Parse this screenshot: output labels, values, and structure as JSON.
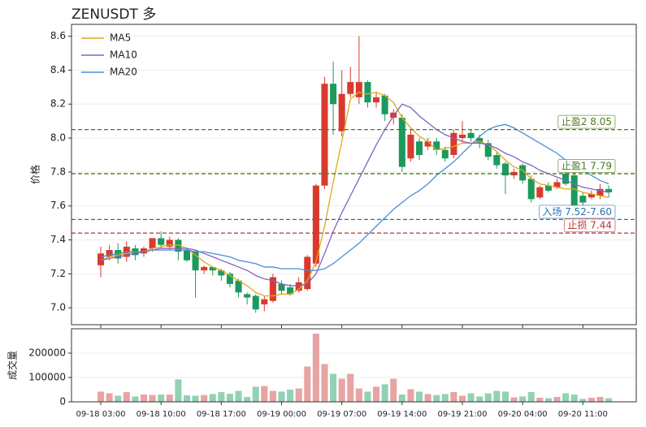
{
  "chart_data": [
    {
      "type": "candlestick",
      "title": "ZENUSDT 多",
      "y_label": "价格",
      "up_color": "#d93a2e",
      "down_color": "#1c9a5e",
      "open": [
        7.25,
        7.3,
        7.34,
        7.3,
        7.35,
        7.32,
        7.35,
        7.41,
        7.36,
        7.4,
        7.34,
        7.33,
        7.22,
        7.24,
        7.22,
        7.2,
        7.16,
        7.08,
        7.07,
        7.02,
        7.04,
        7.14,
        7.12,
        7.1,
        7.11,
        7.26,
        7.72,
        8.32,
        8.04,
        8.26,
        8.24,
        8.33,
        8.21,
        8.25,
        8.12,
        8.12,
        7.88,
        7.98,
        7.95,
        7.98,
        7.93,
        7.9,
        8.0,
        8.03,
        8.0,
        7.97,
        7.9,
        7.85,
        7.78,
        7.84,
        7.76,
        7.65,
        7.72,
        7.71,
        7.79,
        7.78,
        7.66,
        7.65,
        7.66,
        7.7
      ],
      "high": [
        7.36,
        7.37,
        7.38,
        7.39,
        7.37,
        7.36,
        7.41,
        7.45,
        7.42,
        7.41,
        7.35,
        7.34,
        7.25,
        7.24,
        7.23,
        7.21,
        7.17,
        7.09,
        7.08,
        7.07,
        7.2,
        7.16,
        7.14,
        7.18,
        7.31,
        7.73,
        8.36,
        8.45,
        8.4,
        8.42,
        8.6,
        8.34,
        8.27,
        8.26,
        8.17,
        8.14,
        8.05,
        8.0,
        8.0,
        8.0,
        7.95,
        8.05,
        8.1,
        8.05,
        8.02,
        7.99,
        7.92,
        7.86,
        7.82,
        7.85,
        7.78,
        7.72,
        7.74,
        7.76,
        7.81,
        7.8,
        7.68,
        7.69,
        7.73,
        7.72
      ],
      "low": [
        7.18,
        7.28,
        7.26,
        7.27,
        7.28,
        7.3,
        7.33,
        7.35,
        7.34,
        7.28,
        7.27,
        7.06,
        7.2,
        7.19,
        7.16,
        7.12,
        7.06,
        7.02,
        6.97,
        6.98,
        7.03,
        7.08,
        7.07,
        7.09,
        7.1,
        7.24,
        7.7,
        8.02,
        8.01,
        8.24,
        8.2,
        8.18,
        8.18,
        8.1,
        8.08,
        7.8,
        7.86,
        7.87,
        7.93,
        7.9,
        7.86,
        7.88,
        7.98,
        7.98,
        7.94,
        7.87,
        7.82,
        7.67,
        7.76,
        7.73,
        7.62,
        7.64,
        7.68,
        7.7,
        7.72,
        7.56,
        7.6,
        7.64,
        7.64,
        7.65
      ],
      "close": [
        7.32,
        7.34,
        7.29,
        7.36,
        7.31,
        7.35,
        7.41,
        7.37,
        7.4,
        7.33,
        7.28,
        7.22,
        7.24,
        7.22,
        7.19,
        7.14,
        7.09,
        7.06,
        6.99,
        7.05,
        7.18,
        7.1,
        7.08,
        7.15,
        7.3,
        7.72,
        8.32,
        8.2,
        8.26,
        8.33,
        8.33,
        8.21,
        8.24,
        8.14,
        8.15,
        7.83,
        8.02,
        7.9,
        7.98,
        7.93,
        7.88,
        8.03,
        8.02,
        8.0,
        7.97,
        7.89,
        7.84,
        7.78,
        7.8,
        7.75,
        7.64,
        7.71,
        7.69,
        7.74,
        7.73,
        7.6,
        7.62,
        7.67,
        7.7,
        7.68
      ],
      "series": [
        {
          "name": "MA5",
          "color": "#e3a816",
          "values": [
            7.28,
            7.3,
            7.31,
            7.32,
            7.33,
            7.33,
            7.35,
            7.36,
            7.37,
            7.37,
            7.35,
            7.31,
            7.27,
            7.24,
            7.22,
            7.19,
            7.16,
            7.13,
            7.09,
            7.07,
            7.07,
            7.08,
            7.08,
            7.11,
            7.16,
            7.27,
            7.48,
            7.74,
            7.98,
            8.23,
            8.27,
            8.26,
            8.27,
            8.25,
            8.21,
            8.12,
            8.06,
            8.01,
            7.98,
            7.93,
            7.94,
            7.95,
            7.97,
            7.97,
            7.98,
            7.96,
            7.92,
            7.87,
            7.83,
            7.81,
            7.76,
            7.73,
            7.72,
            7.71,
            7.7,
            7.7,
            7.68,
            7.67,
            7.66,
            7.65
          ]
        },
        {
          "name": "MA10",
          "color": "#8660c4",
          "values": [
            7.28,
            7.29,
            7.3,
            7.31,
            7.32,
            7.33,
            7.34,
            7.35,
            7.35,
            7.35,
            7.35,
            7.34,
            7.32,
            7.3,
            7.28,
            7.26,
            7.24,
            7.22,
            7.19,
            7.17,
            7.16,
            7.14,
            7.13,
            7.13,
            7.14,
            7.2,
            7.32,
            7.45,
            7.56,
            7.66,
            7.76,
            7.86,
            7.96,
            8.05,
            8.13,
            8.2,
            8.18,
            8.13,
            8.09,
            8.05,
            8.02,
            8.0,
            7.98,
            7.97,
            7.97,
            7.96,
            7.94,
            7.91,
            7.89,
            7.86,
            7.84,
            7.81,
            7.79,
            7.77,
            7.75,
            7.73,
            7.71,
            7.7,
            7.69,
            7.68
          ]
        },
        {
          "name": "MA20",
          "color": "#4a8ed6",
          "values": [
            7.3,
            7.31,
            7.32,
            7.33,
            7.33,
            7.33,
            7.34,
            7.34,
            7.34,
            7.34,
            7.34,
            7.33,
            7.33,
            7.32,
            7.31,
            7.3,
            7.28,
            7.27,
            7.26,
            7.24,
            7.24,
            7.23,
            7.23,
            7.23,
            7.22,
            7.22,
            7.23,
            7.26,
            7.3,
            7.34,
            7.38,
            7.43,
            7.48,
            7.53,
            7.58,
            7.62,
            7.66,
            7.69,
            7.73,
            7.78,
            7.82,
            7.86,
            7.91,
            7.96,
            8.01,
            8.05,
            8.07,
            8.08,
            8.06,
            8.03,
            8.0,
            7.97,
            7.94,
            7.91,
            7.87,
            7.84,
            7.81,
            7.78,
            7.75,
            7.73
          ]
        }
      ],
      "levels": [
        {
          "value": 8.05,
          "label": "止盈2 8.05",
          "color": "#4d7a1e"
        },
        {
          "value": 7.79,
          "label": "止盈1 7.79",
          "color": "#4d7a1e"
        },
        {
          "value": 7.52,
          "label": "入场 7.52-7.60",
          "color": "#2f6fb0"
        },
        {
          "value": 7.44,
          "label": "止损 7.44",
          "color": "#b03535"
        }
      ],
      "ylim": [
        6.9,
        8.67
      ],
      "yticks": [
        {
          "value": 7,
          "label": "7.0"
        },
        7.2,
        7.4,
        7.6,
        7.8,
        {
          "value": 8,
          "label": "8.0"
        },
        8.2,
        8.4,
        8.6
      ],
      "grid": true,
      "legend": "upper-left"
    },
    {
      "type": "bar",
      "y_label": "成交量",
      "up_color": "#e8a3a3",
      "down_color": "#93d1b4",
      "categories": [
        "09-18 03:00",
        null,
        null,
        null,
        null,
        null,
        null,
        "09-18 10:00",
        null,
        null,
        null,
        null,
        null,
        null,
        "09-18 17:00",
        null,
        null,
        null,
        null,
        null,
        null,
        "09-19 00:00",
        null,
        null,
        null,
        null,
        null,
        null,
        "09-19 07:00",
        null,
        null,
        null,
        null,
        null,
        null,
        "09-19 14:00",
        null,
        null,
        null,
        null,
        null,
        null,
        "09-19 21:00",
        null,
        null,
        null,
        null,
        null,
        null,
        "09-20 04:00",
        null,
        null,
        null,
        null,
        null,
        null,
        "09-20 11:00",
        null,
        null,
        null
      ],
      "values": [
        42000,
        35000,
        25000,
        40000,
        22000,
        30000,
        28000,
        30000,
        30000,
        92000,
        27000,
        25000,
        28000,
        32000,
        40000,
        33000,
        45000,
        20000,
        62000,
        65000,
        45000,
        42000,
        50000,
        55000,
        145000,
        280000,
        155000,
        115000,
        95000,
        115000,
        55000,
        42000,
        62000,
        72000,
        95000,
        30000,
        52000,
        42000,
        32000,
        28000,
        32000,
        40000,
        25000,
        35000,
        22000,
        35000,
        45000,
        42000,
        18000,
        22000,
        40000,
        17000,
        15000,
        20000,
        35000,
        30000,
        12000,
        17000,
        20000,
        15000
      ],
      "ylim": [
        0,
        300000
      ],
      "yticks": [
        0,
        100000,
        200000
      ],
      "grid": true
    }
  ]
}
